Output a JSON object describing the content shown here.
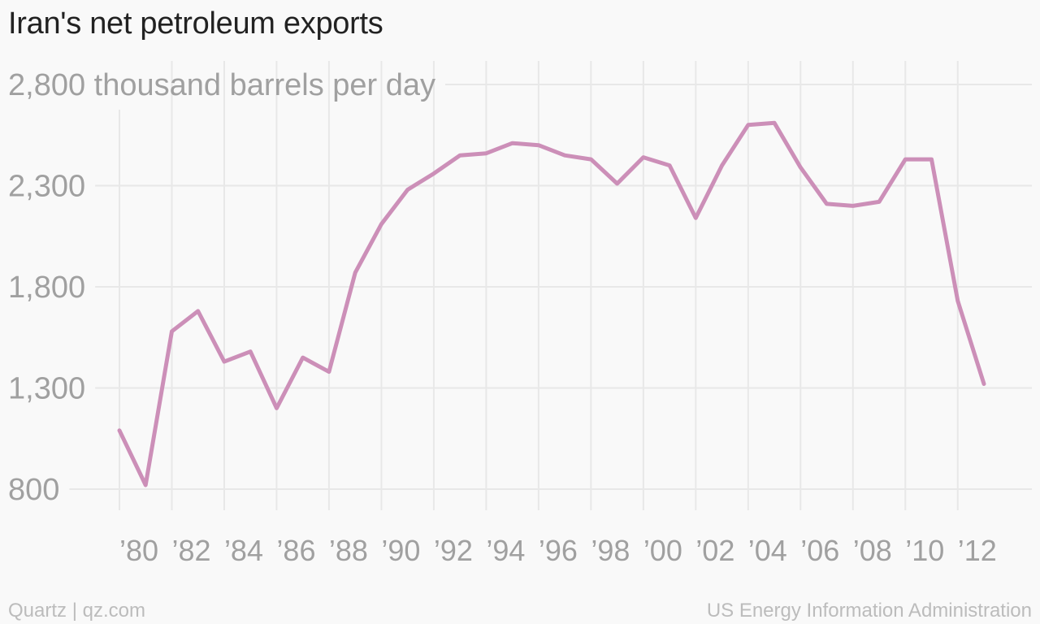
{
  "title": "Iran's net petroleum exports",
  "footer": {
    "left": "Quartz | qz.com",
    "right": "US Energy Information Administration"
  },
  "colors": {
    "line": "#cc8fb8",
    "grid": "#e8e8e8",
    "tick_text": "#a0a0a0",
    "title_text": "#222222"
  },
  "chart_data": {
    "type": "line",
    "title": "Iran's net petroleum exports",
    "ylabel_unit": "thousand barrels per day",
    "ylim": [
      800,
      2800
    ],
    "yticks": [
      800,
      1300,
      1800,
      2300,
      2800
    ],
    "ytick_labels": [
      "800",
      "1,300",
      "1,800",
      "2,300",
      "2,800 thousand barrels per day"
    ],
    "xlim": [
      1980,
      2013
    ],
    "xticks": [
      1980,
      1982,
      1984,
      1986,
      1988,
      1990,
      1992,
      1994,
      1996,
      1998,
      2000,
      2002,
      2004,
      2006,
      2008,
      2010,
      2012
    ],
    "xtick_labels": [
      "’80",
      "’82",
      "’84",
      "’86",
      "’88",
      "’90",
      "’92",
      "’94",
      "’96",
      "’98",
      "’00",
      "’02",
      "’04",
      "’06",
      "’08",
      "’10",
      "’12"
    ],
    "grid": true,
    "series": [
      {
        "x": [
          1980,
          1981,
          1982,
          1983,
          1984,
          1985,
          1986,
          1987,
          1988,
          1989,
          1990,
          1991,
          1992,
          1993,
          1994,
          1995,
          1996,
          1997,
          1998,
          1999,
          2000,
          2001,
          2002,
          2003,
          2004,
          2005,
          2006,
          2007,
          2008,
          2009,
          2010,
          2011,
          2012,
          2013
        ],
        "values": [
          1090,
          820,
          1580,
          1680,
          1430,
          1480,
          1200,
          1450,
          1380,
          1870,
          2110,
          2280,
          2360,
          2450,
          2460,
          2510,
          2500,
          2450,
          2430,
          2310,
          2440,
          2400,
          2140,
          2400,
          2600,
          2610,
          2390,
          2210,
          2200,
          2220,
          2430,
          2430,
          1730,
          1320
        ]
      }
    ]
  }
}
